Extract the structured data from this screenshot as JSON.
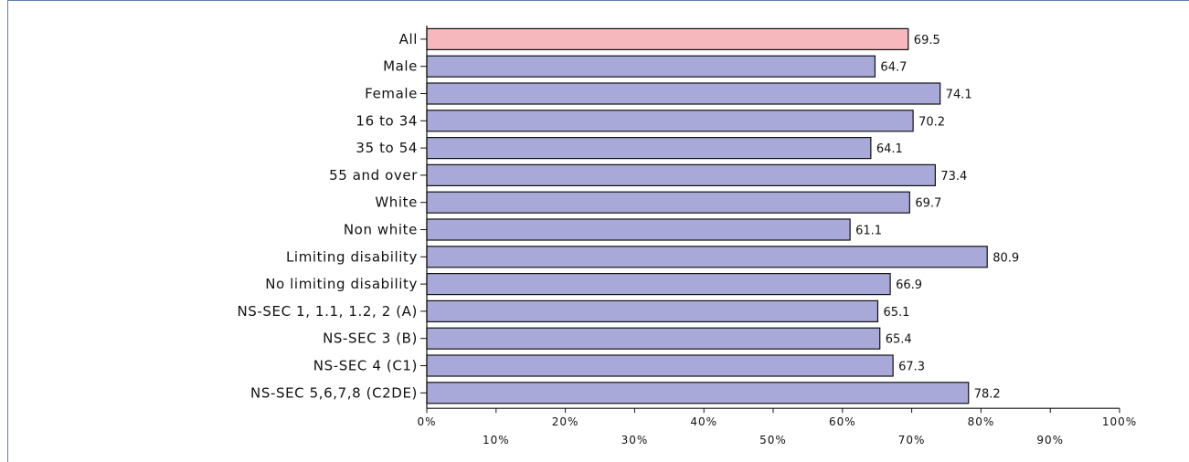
{
  "chart_data": {
    "type": "bar",
    "orientation": "horizontal",
    "categories": [
      "All",
      "Male",
      "Female",
      "16 to 34",
      "35 to 54",
      "55 and over",
      "White",
      "Non white",
      "Limiting disability",
      "No limiting disability",
      "NS-SEC 1, 1.1, 1.2, 2 (A)",
      "NS-SEC 3 (B)",
      "NS-SEC 4 (C1)",
      "NS-SEC 5,6,7,8 (C2DE)"
    ],
    "values": [
      69.5,
      64.7,
      74.1,
      70.2,
      64.1,
      73.4,
      69.7,
      61.1,
      80.9,
      66.9,
      65.1,
      65.4,
      67.3,
      78.2
    ],
    "value_labels": [
      "69.5",
      "64.7",
      "74.1",
      "70.2",
      "64.1",
      "73.4",
      "69.7",
      "61.1",
      "80.9",
      "66.9",
      "65.1",
      "65.4",
      "67.3",
      "78.2"
    ],
    "xlim": [
      0,
      100
    ],
    "x_ticks": [
      0,
      10,
      20,
      30,
      40,
      50,
      60,
      70,
      80,
      90,
      100
    ],
    "x_tick_labels": [
      "0%",
      "10%",
      "20%",
      "30%",
      "40%",
      "50%",
      "60%",
      "70%",
      "80%",
      "90%",
      "100%"
    ],
    "title": "",
    "xlabel": "",
    "ylabel": "",
    "grid": false,
    "legend": "none",
    "colors": {
      "highlight_fill": "#f6b8bd",
      "bar_fill": "#a9a9d9",
      "bar_stroke": "#111111",
      "frame": "#5b7fb0"
    },
    "highlight_index": 0
  }
}
